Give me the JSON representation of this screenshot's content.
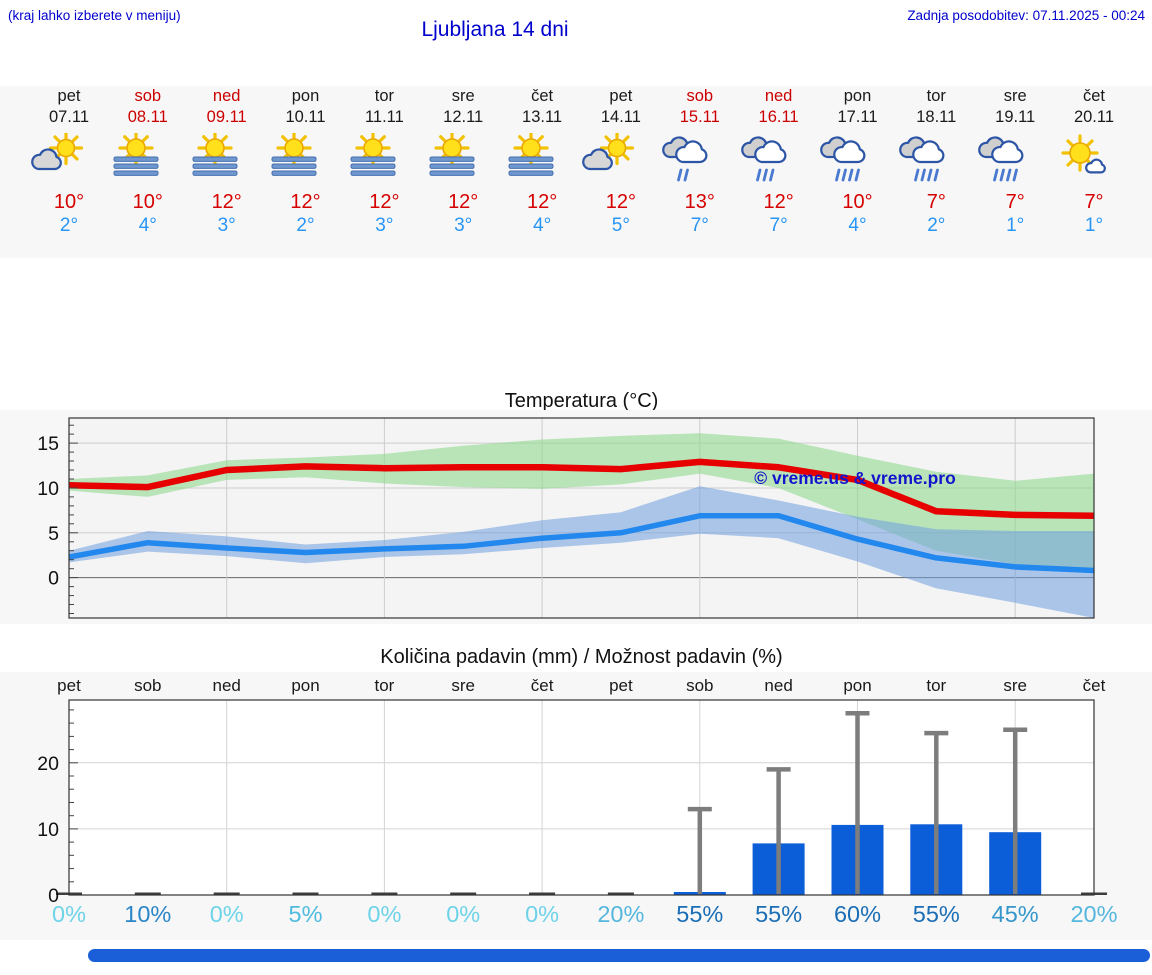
{
  "header": {
    "note": "(kraj lahko izberete v meniju)",
    "title": "Ljubljana 14 dni",
    "updated": "Zadnja posodobitev: 07.11.2025 - 00:24"
  },
  "colors": {
    "header_blue": "#0000cd",
    "weekend_red": "#cc0000",
    "high_temp_red": "#d60000",
    "low_temp_blue": "#2795f5",
    "band_gray": "#f7f7f7",
    "bar_blue": "#0b5ed8",
    "whisker_gray": "#7d7d7d",
    "watermark_blue": "#1414cc"
  },
  "forecast": {
    "days": [
      {
        "name": "pet",
        "date": "07.11",
        "weekend": false,
        "icon": "sun-cloud",
        "high": "10°",
        "low": "2°"
      },
      {
        "name": "sob",
        "date": "08.11",
        "weekend": true,
        "icon": "sun-fog",
        "high": "10°",
        "low": "4°"
      },
      {
        "name": "ned",
        "date": "09.11",
        "weekend": true,
        "icon": "sun-fog",
        "high": "12°",
        "low": "3°"
      },
      {
        "name": "pon",
        "date": "10.11",
        "weekend": false,
        "icon": "sun-fog",
        "high": "12°",
        "low": "2°"
      },
      {
        "name": "tor",
        "date": "11.11",
        "weekend": false,
        "icon": "sun-fog",
        "high": "12°",
        "low": "3°"
      },
      {
        "name": "sre",
        "date": "12.11",
        "weekend": false,
        "icon": "sun-fog",
        "high": "12°",
        "low": "3°"
      },
      {
        "name": "čet",
        "date": "13.11",
        "weekend": false,
        "icon": "sun-fog",
        "high": "12°",
        "low": "4°"
      },
      {
        "name": "pet",
        "date": "14.11",
        "weekend": false,
        "icon": "sun-cloud",
        "high": "12°",
        "low": "5°"
      },
      {
        "name": "sob",
        "date": "15.11",
        "weekend": true,
        "icon": "rain-2",
        "high": "13°",
        "low": "7°"
      },
      {
        "name": "ned",
        "date": "16.11",
        "weekend": true,
        "icon": "rain-3",
        "high": "12°",
        "low": "7°"
      },
      {
        "name": "pon",
        "date": "17.11",
        "weekend": false,
        "icon": "rain-4",
        "high": "10°",
        "low": "4°"
      },
      {
        "name": "tor",
        "date": "18.11",
        "weekend": false,
        "icon": "rain-4",
        "high": "7°",
        "low": "2°"
      },
      {
        "name": "sre",
        "date": "19.11",
        "weekend": false,
        "icon": "rain-4",
        "high": "7°",
        "low": "1°"
      },
      {
        "name": "čet",
        "date": "20.11",
        "weekend": false,
        "icon": "sun-small-cloud",
        "high": "7°",
        "low": "1°"
      }
    ]
  },
  "chart_data": [
    {
      "type": "line",
      "title": "Temperatura (°C)",
      "x_labels": [
        "pet",
        "sob",
        "ned",
        "pon",
        "tor",
        "sre",
        "čet",
        "pet",
        "sob",
        "ned",
        "pon",
        "tor",
        "sre",
        "čet"
      ],
      "ylim": [
        -4.5,
        17.8
      ],
      "yticks": [
        0,
        5,
        10,
        15
      ],
      "grid": true,
      "watermark": "© vreme.us & vreme.pro",
      "series": [
        {
          "name": "max temperatura",
          "color": "#e60000",
          "width": 6.5,
          "values": [
            10.3,
            10.1,
            12.0,
            12.4,
            12.2,
            12.3,
            12.3,
            12.1,
            12.9,
            12.3,
            10.9,
            7.4,
            7.0,
            6.9
          ]
        },
        {
          "name": "min temperatura",
          "color": "#2288ee",
          "width": 5.5,
          "values": [
            2.3,
            3.9,
            3.3,
            2.8,
            3.2,
            3.5,
            4.4,
            5.0,
            6.9,
            6.9,
            4.3,
            2.2,
            1.2,
            0.8
          ]
        }
      ],
      "bands": [
        {
          "name": "max range",
          "color": "#8fd98f",
          "opacity": 0.6,
          "upper": [
            11.0,
            11.4,
            13.1,
            13.4,
            13.8,
            14.7,
            15.4,
            15.8,
            16.1,
            15.5,
            13.6,
            11.8,
            10.8,
            11.6
          ],
          "lower": [
            9.7,
            9.0,
            10.9,
            11.2,
            10.5,
            10.1,
            9.9,
            10.4,
            11.6,
            10.0,
            6.5,
            3.0,
            1.5,
            0.6
          ]
        },
        {
          "name": "min range",
          "color": "#6f9fe0",
          "opacity": 0.55,
          "upper": [
            3.0,
            5.2,
            4.6,
            3.7,
            4.2,
            5.1,
            6.4,
            7.3,
            10.2,
            8.6,
            6.8,
            5.4,
            5.2,
            5.2
          ],
          "lower": [
            1.7,
            2.9,
            2.4,
            1.6,
            2.3,
            2.6,
            3.3,
            3.9,
            4.9,
            4.4,
            1.8,
            -1.2,
            -2.8,
            -4.5
          ]
        }
      ]
    },
    {
      "type": "bar",
      "title": "Količina padavin (mm) / Možnost padavin (%)",
      "categories": [
        "pet",
        "sob",
        "ned",
        "pon",
        "tor",
        "sre",
        "čet",
        "pet",
        "sob",
        "ned",
        "pon",
        "tor",
        "sre",
        "čet"
      ],
      "values": [
        0.15,
        0.25,
        0.15,
        0.2,
        0.15,
        0.15,
        0.15,
        0.2,
        0.45,
        7.8,
        10.6,
        10.7,
        9.5,
        0.15
      ],
      "whisker_max": [
        0,
        0,
        0,
        0,
        0,
        0,
        0,
        0,
        13,
        19,
        27.5,
        24.5,
        25,
        0
      ],
      "probabilities": [
        "0%",
        "10%",
        "0%",
        "5%",
        "0%",
        "0%",
        "0%",
        "20%",
        "55%",
        "55%",
        "60%",
        "55%",
        "45%",
        "20%"
      ],
      "probability_colors": [
        "#6ed3e8",
        "#2b86c8",
        "#6ed3e8",
        "#4fbcdf",
        "#6ed3e8",
        "#6ed3e8",
        "#6ed3e8",
        "#55b7dd",
        "#1b6eb5",
        "#1b6eb5",
        "#1b6eb5",
        "#1b6eb5",
        "#3496cb",
        "#55b7dd"
      ],
      "ylim": [
        0,
        29.5
      ],
      "yticks": [
        0,
        10,
        20
      ],
      "bar_color": "#0b5ed8",
      "grid": true
    }
  ]
}
